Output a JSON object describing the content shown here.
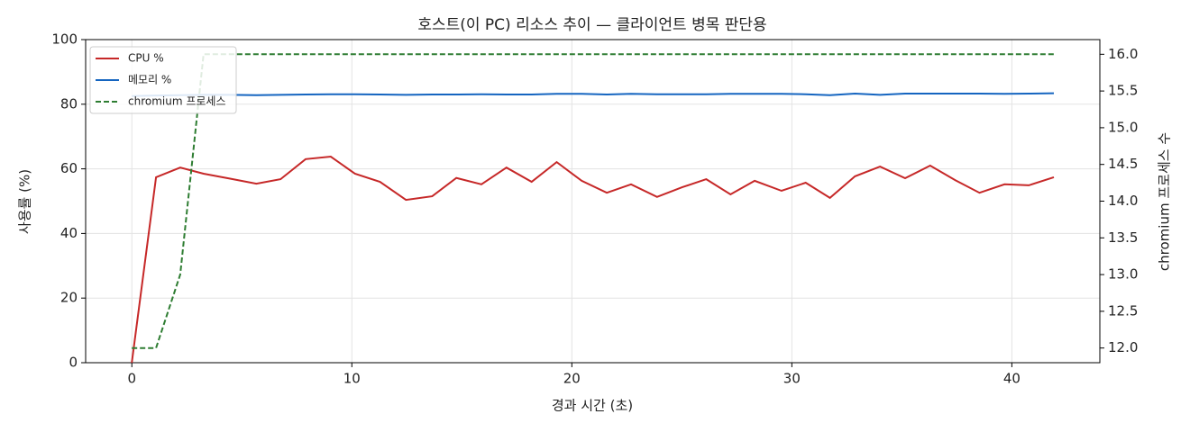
{
  "chart_data": {
    "type": "line",
    "title": "호스트(이 PC) 리소스 추이 — 클라이언트 병목 판단용",
    "x_label": "경과 시간 (초)",
    "y_label": "사용률 (%)",
    "y2_label": "chromium 프로세스 수",
    "x": [
      0,
      1.1,
      2.2,
      3.26,
      4.44,
      5.66,
      6.76,
      7.9,
      9.04,
      10.14,
      11.28,
      12.46,
      13.65,
      14.75,
      15.89,
      17.03,
      18.17,
      19.31,
      20.45,
      21.59,
      22.69,
      23.87,
      25.01,
      26.11,
      27.21,
      28.31,
      29.53,
      30.63,
      31.73,
      32.87,
      34.01,
      35.15,
      36.29,
      37.43,
      38.53,
      39.67,
      40.77,
      41.91
    ],
    "series": [
      {
        "name": "CPU %",
        "color": "#c62828",
        "dash": false,
        "values": [
          0,
          57.4,
          60.4,
          58.5,
          57,
          55.4,
          56.8,
          63,
          63.8,
          58.5,
          56,
          50.4,
          51.5,
          57.2,
          55.2,
          60.4,
          56,
          62.1,
          56.3,
          52.6,
          55.2,
          51.3,
          54.3,
          56.8,
          52.1,
          56.3,
          53.2,
          55.7,
          51,
          57.7,
          60.7,
          57.1,
          61,
          56.5,
          52.6,
          55.2,
          54.9,
          57.4
        ]
      },
      {
        "name": "메모리 %",
        "color": "#1565c0",
        "dash": false,
        "values": [
          82.5,
          82.7,
          82.8,
          82.9,
          82.9,
          82.8,
          82.9,
          83,
          83.1,
          83.1,
          83,
          82.9,
          83,
          83,
          83.1,
          83,
          83,
          83.2,
          83.2,
          83,
          83.2,
          83.1,
          83.1,
          83.1,
          83.2,
          83.2,
          83.2,
          83.1,
          82.8,
          83.3,
          82.9,
          83.3,
          83.3,
          83.3,
          83.3,
          83.2,
          83.3,
          83.4
        ]
      },
      {
        "name": "chromium 프로세스",
        "color": "#2e7d32",
        "dash": true,
        "axis": "y2",
        "values": [
          12,
          12,
          13,
          16,
          16,
          16,
          16,
          16,
          16,
          16,
          16,
          16,
          16,
          16,
          16,
          16,
          16,
          16,
          16,
          16,
          16,
          16,
          16,
          16,
          16,
          16,
          16,
          16,
          16,
          16,
          16,
          16,
          16,
          16,
          16,
          16,
          16,
          16
        ]
      }
    ],
    "xlim": [
      -2.1,
      44.0
    ],
    "xticks": [
      0,
      10,
      20,
      30,
      40
    ],
    "ylim": [
      0,
      100
    ],
    "yticks": [
      0,
      20,
      40,
      60,
      80,
      100
    ],
    "y2lim": [
      11.8,
      16.2
    ],
    "y2ticks": [
      {
        "value": 12,
        "label": "12.0"
      },
      12.5,
      {
        "value": 13,
        "label": "13.0"
      },
      13.5,
      {
        "value": 14,
        "label": "14.0"
      },
      14.5,
      {
        "value": 15,
        "label": "15.0"
      },
      15.5,
      {
        "value": 16,
        "label": "16.0"
      }
    ],
    "grid": true,
    "legend": "upper-left"
  }
}
